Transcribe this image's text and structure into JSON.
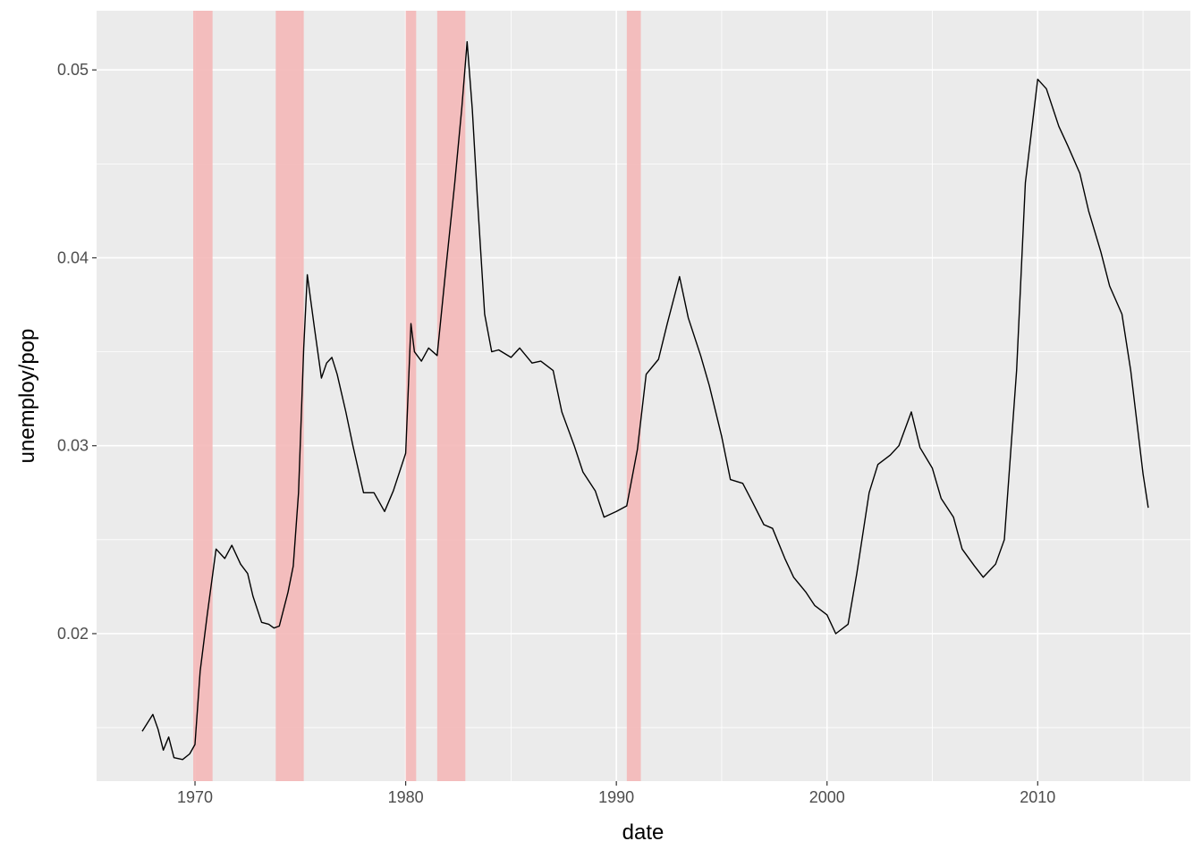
{
  "chart_data": {
    "type": "line",
    "title": "",
    "xlabel": "date",
    "ylabel": "unemploy/pop",
    "xlim": [
      "1965-05-01",
      "2017-04-01"
    ],
    "ylim": [
      0.01215,
      0.05315
    ],
    "x_ticks": [
      {
        "value": "1970-01-01",
        "label": "1970"
      },
      {
        "value": "1980-01-01",
        "label": "1980"
      },
      {
        "value": "1990-01-01",
        "label": "1990"
      },
      {
        "value": "2000-01-01",
        "label": "2000"
      },
      {
        "value": "2010-01-01",
        "label": "2010"
      }
    ],
    "x_minor_ticks": [
      "1965-01-01",
      "1975-01-01",
      "1985-01-01",
      "1995-01-01",
      "2005-01-01",
      "2015-01-01"
    ],
    "y_ticks": [
      {
        "value": 0.02,
        "label": "0.02"
      },
      {
        "value": 0.03,
        "label": "0.03"
      },
      {
        "value": 0.04,
        "label": "0.04"
      },
      {
        "value": 0.05,
        "label": "0.05"
      }
    ],
    "y_minor_ticks": [
      0.015,
      0.025,
      0.035,
      0.045
    ],
    "grid": true,
    "legend": "none",
    "colors": {
      "panel": "#ebebeb",
      "grid": "#ffffff",
      "line": "#000000",
      "shade": "#f4b8b8"
    },
    "shaded_periods": [
      {
        "start": "1969-12-01",
        "end": "1970-11-01"
      },
      {
        "start": "1973-11-01",
        "end": "1975-03-01"
      },
      {
        "start": "1980-01-01",
        "end": "1980-07-01"
      },
      {
        "start": "1981-07-01",
        "end": "1982-11-01"
      },
      {
        "start": "1990-07-01",
        "end": "1991-03-01"
      }
    ],
    "series": [
      {
        "x": [
          "1967-07-01",
          "1968-01-01",
          "1968-04-01",
          "1968-07-01",
          "1968-10-01",
          "1969-01-01",
          "1969-06-01",
          "1969-10-01",
          "1970-01-01",
          "1970-04-01",
          "1970-08-01",
          "1971-01-01",
          "1971-06-01",
          "1971-10-01",
          "1972-03-01",
          "1972-07-01",
          "1972-10-01",
          "1973-03-01",
          "1973-07-01",
          "1973-10-01",
          "1974-01-01",
          "1974-06-01",
          "1974-09-01",
          "1974-12-01",
          "1975-03-01",
          "1975-05-01",
          "1975-09-01",
          "1976-01-01",
          "1976-04-01",
          "1976-07-01",
          "1976-10-01",
          "1977-03-01",
          "1977-07-01",
          "1978-01-01",
          "1978-07-01",
          "1979-01-01",
          "1979-06-01",
          "1980-01-01",
          "1980-04-01",
          "1980-06-01",
          "1980-10-01",
          "1981-02-01",
          "1981-07-01",
          "1981-12-01",
          "1982-05-01",
          "1982-09-01",
          "1982-12-01",
          "1983-03-01",
          "1983-06-01",
          "1983-10-01",
          "1984-02-01",
          "1984-06-01",
          "1985-01-01",
          "1985-06-01",
          "1986-01-01",
          "1986-06-01",
          "1987-01-01",
          "1987-06-01",
          "1988-01-01",
          "1988-06-01",
          "1989-01-01",
          "1989-06-01",
          "1990-01-01",
          "1990-07-01",
          "1991-01-01",
          "1991-06-01",
          "1992-01-01",
          "1992-06-01",
          "1993-01-01",
          "1993-06-01",
          "1994-01-01",
          "1994-06-01",
          "1995-01-01",
          "1995-06-01",
          "1996-01-01",
          "1996-06-01",
          "1997-01-01",
          "1997-06-01",
          "1998-01-01",
          "1998-06-01",
          "1999-01-01",
          "1999-06-01",
          "2000-01-01",
          "2000-06-01",
          "2001-01-01",
          "2001-06-01",
          "2002-01-01",
          "2002-06-01",
          "2003-01-01",
          "2003-06-01",
          "2004-01-01",
          "2004-06-01",
          "2005-01-01",
          "2005-06-01",
          "2006-01-01",
          "2006-06-01",
          "2007-01-01",
          "2007-06-01",
          "2008-01-01",
          "2008-06-01",
          "2009-01-01",
          "2009-06-01",
          "2010-01-01",
          "2010-06-01",
          "2011-01-01",
          "2011-06-01",
          "2012-01-01",
          "2012-06-01",
          "2013-01-01",
          "2013-06-01",
          "2014-01-01",
          "2014-06-01",
          "2015-01-01",
          "2015-04-01"
        ],
        "y": [
          0.0148,
          0.0157,
          0.0149,
          0.0138,
          0.0145,
          0.0134,
          0.0133,
          0.0136,
          0.0141,
          0.018,
          0.021,
          0.0245,
          0.024,
          0.0247,
          0.0237,
          0.0232,
          0.022,
          0.0206,
          0.0205,
          0.0203,
          0.0204,
          0.0222,
          0.0236,
          0.0275,
          0.0352,
          0.0391,
          0.0363,
          0.0336,
          0.0344,
          0.0347,
          0.0338,
          0.0318,
          0.03,
          0.0275,
          0.0275,
          0.0265,
          0.0276,
          0.0296,
          0.0365,
          0.035,
          0.0345,
          0.0352,
          0.0348,
          0.0395,
          0.044,
          0.048,
          0.0515,
          0.0479,
          0.043,
          0.037,
          0.035,
          0.0351,
          0.0347,
          0.0352,
          0.0344,
          0.0345,
          0.034,
          0.0318,
          0.03,
          0.0286,
          0.0276,
          0.0262,
          0.0265,
          0.0268,
          0.0298,
          0.0338,
          0.0346,
          0.0365,
          0.039,
          0.0368,
          0.0348,
          0.0332,
          0.0305,
          0.0282,
          0.028,
          0.0271,
          0.0258,
          0.0256,
          0.024,
          0.023,
          0.0222,
          0.0215,
          0.021,
          0.02,
          0.0205,
          0.0232,
          0.0275,
          0.029,
          0.0295,
          0.03,
          0.0318,
          0.0299,
          0.0288,
          0.0272,
          0.0262,
          0.0245,
          0.0236,
          0.023,
          0.0237,
          0.025,
          0.034,
          0.044,
          0.0495,
          0.049,
          0.047,
          0.046,
          0.0445,
          0.0425,
          0.0403,
          0.0385,
          0.037,
          0.034,
          0.0285,
          0.0267
        ]
      }
    ]
  }
}
